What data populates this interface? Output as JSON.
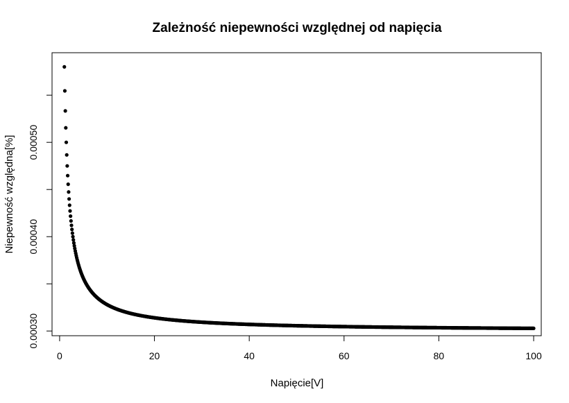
{
  "chart_data": {
    "type": "scatter",
    "title": "Zależność niepewności względnej od napięcia",
    "xlabel": "Napięcie[V]",
    "ylabel": "Niepewność względna[%]",
    "xlim": [
      -1.6,
      101.6
    ],
    "ylim": [
      0.000295,
      0.000595
    ],
    "x_ticks": [
      0,
      20,
      40,
      60,
      80,
      100
    ],
    "x_tick_labels": [
      "0",
      "20",
      "40",
      "60",
      "80",
      "100"
    ],
    "y_ticks": [
      0.0003,
      0.00035,
      0.0004,
      0.00045,
      0.0005,
      0.00055
    ],
    "y_tick_labels": [
      "0.00030",
      "",
      "0.00040",
      "",
      "0.00050",
      ""
    ],
    "grid": false,
    "legend": "none",
    "marker_color": "#000000",
    "series": [
      {
        "model": "y = 0.0003 + 0.00028 / x",
        "x_start": 1,
        "x_end": 100,
        "x_step": 0.1,
        "x": [
          1,
          1.2,
          1.5,
          2,
          3,
          5,
          10,
          20,
          40,
          60,
          80,
          100
        ],
        "values": [
          0.00058,
          0.000533,
          0.000487,
          0.00044,
          0.000393,
          0.000356,
          0.000328,
          0.000314,
          0.000307,
          0.000305,
          0.0003035,
          0.0003028
        ]
      }
    ]
  }
}
